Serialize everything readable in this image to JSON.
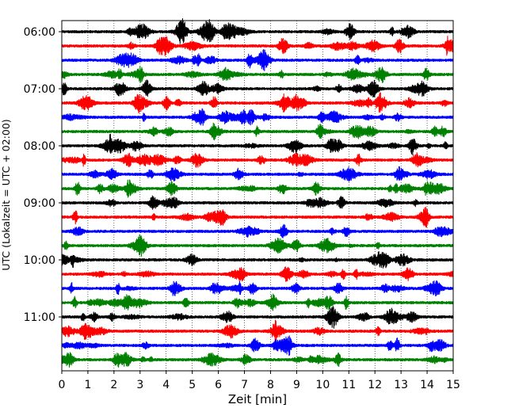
{
  "chart_data": {
    "type": "line",
    "subtype": "helicorder",
    "title": "",
    "xlabel": "Zeit  [min]",
    "ylabel": "UTC (Lokalzeit = UTC + 02:00)",
    "xlim": [
      0,
      15
    ],
    "x_ticks": [
      0,
      1,
      2,
      3,
      4,
      5,
      6,
      7,
      8,
      9,
      10,
      11,
      12,
      13,
      14,
      15
    ],
    "y_tick_labels": [
      "06:00",
      "07:00",
      "08:00",
      "09:00",
      "10:00",
      "11:00"
    ],
    "y_tick_trace_index": [
      0,
      4,
      8,
      12,
      16,
      20
    ],
    "trace_interval_minutes": 15,
    "grid": "vertical dotted lines at each minute",
    "trace_colors": [
      "#000000",
      "#ff0000",
      "#0000ff",
      "#008000"
    ],
    "traces": [
      {
        "start": "06:00",
        "color": "#000000"
      },
      {
        "start": "06:15",
        "color": "#ff0000"
      },
      {
        "start": "06:30",
        "color": "#0000ff"
      },
      {
        "start": "06:45",
        "color": "#008000"
      },
      {
        "start": "07:00",
        "color": "#000000"
      },
      {
        "start": "07:15",
        "color": "#ff0000"
      },
      {
        "start": "07:30",
        "color": "#0000ff"
      },
      {
        "start": "07:45",
        "color": "#008000"
      },
      {
        "start": "08:00",
        "color": "#000000"
      },
      {
        "start": "08:15",
        "color": "#ff0000"
      },
      {
        "start": "08:30",
        "color": "#0000ff"
      },
      {
        "start": "08:45",
        "color": "#008000"
      },
      {
        "start": "09:00",
        "color": "#000000"
      },
      {
        "start": "09:15",
        "color": "#ff0000"
      },
      {
        "start": "09:30",
        "color": "#0000ff"
      },
      {
        "start": "09:45",
        "color": "#008000"
      },
      {
        "start": "10:00",
        "color": "#000000"
      },
      {
        "start": "10:15",
        "color": "#ff0000"
      },
      {
        "start": "10:30",
        "color": "#0000ff"
      },
      {
        "start": "10:45",
        "color": "#008000"
      },
      {
        "start": "11:00",
        "color": "#000000"
      },
      {
        "start": "11:15",
        "color": "#ff0000"
      },
      {
        "start": "11:30",
        "color": "#0000ff"
      },
      {
        "start": "11:45",
        "color": "#008000"
      }
    ]
  }
}
